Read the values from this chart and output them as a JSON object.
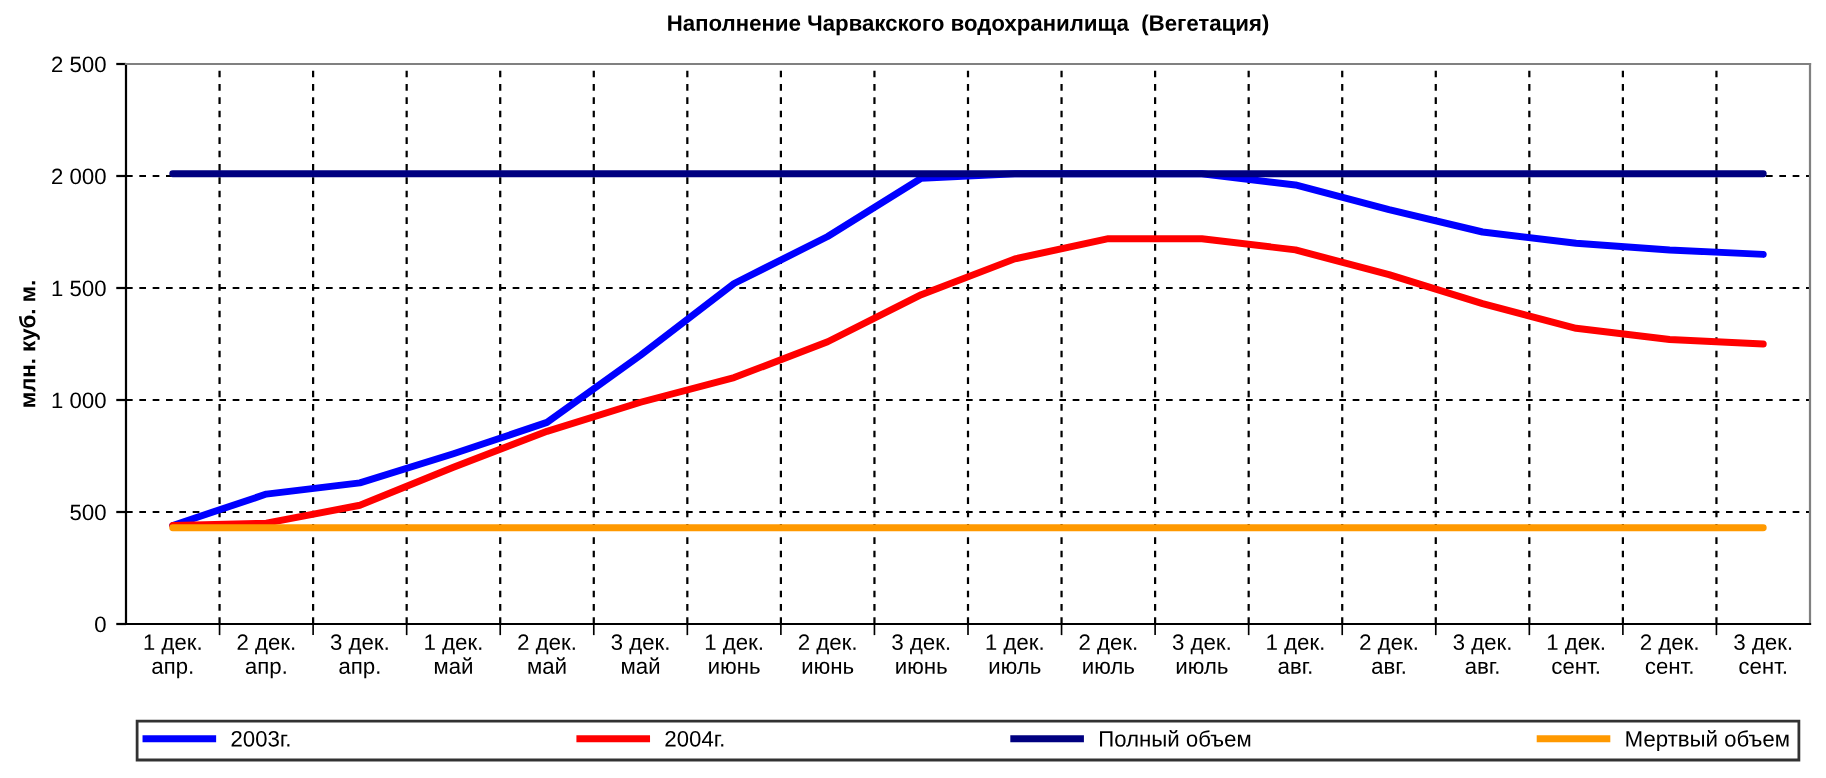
{
  "chart_data": {
    "type": "line",
    "title": "Наполнение Чарвакского водохранилища  (Вегетация)",
    "ylabel": "млн. куб. м.",
    "categories": [
      "1 дек.\nапр.",
      "2 дек.\nапр.",
      "3 дек.\nапр.",
      "1 дек.\nмай",
      "2 дек.\nмай",
      "3 дек.\nмай",
      "1 дек.\nиюнь",
      "2 дек.\nиюнь",
      "3 дек.\nиюнь",
      "1 дек.\nиюль",
      "2 дек.\nиюль",
      "3 дек.\nиюль",
      "1 дек.\nавг.",
      "2 дек.\nавг.",
      "3 дек.\nавг.",
      "1 дек.\nсент.",
      "2 дек.\nсент.",
      "3 дек.\nсент."
    ],
    "series": [
      {
        "name": "2003г.",
        "color": "#0000ff",
        "values": [
          440,
          580,
          630,
          760,
          900,
          1200,
          1520,
          1730,
          1990,
          2010,
          2010,
          2010,
          1960,
          1850,
          1750,
          1700,
          1670,
          1650
        ]
      },
      {
        "name": "2004г.",
        "color": "#ff0000",
        "values": [
          440,
          450,
          530,
          700,
          860,
          990,
          1100,
          1260,
          1470,
          1630,
          1720,
          1720,
          1670,
          1560,
          1430,
          1320,
          1270,
          1250
        ]
      },
      {
        "name": "Полный объем",
        "color": "#000080",
        "values": [
          2010,
          2010,
          2010,
          2010,
          2010,
          2010,
          2010,
          2010,
          2010,
          2010,
          2010,
          2010,
          2010,
          2010,
          2010,
          2010,
          2010,
          2010
        ]
      },
      {
        "name": "Мертвый объем",
        "color": "#ff9900",
        "values": [
          430,
          430,
          430,
          430,
          430,
          430,
          430,
          430,
          430,
          430,
          430,
          430,
          430,
          430,
          430,
          430,
          430,
          430
        ]
      }
    ],
    "ylim": [
      0,
      2500
    ],
    "yticks": [
      0,
      500,
      {
        "value": 1000,
        "label": "1 000"
      },
      {
        "value": 1500,
        "label": "1 500"
      },
      {
        "value": 2000,
        "label": "2 000"
      },
      {
        "value": 2500,
        "label": "2 500"
      }
    ],
    "grid": true,
    "legend": "bottom",
    "marker": "none",
    "line_style": "solid"
  }
}
